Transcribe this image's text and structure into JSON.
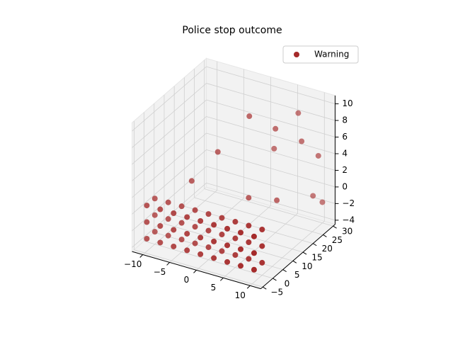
{
  "chart_data": {
    "type": "scatter3d",
    "title": "Police stop outcome",
    "series": [
      {
        "name": "Warning",
        "color": "#a52a2a",
        "x": [
          -10,
          -10,
          -10,
          -10,
          -10,
          -10,
          -7.5,
          -7.5,
          -7.5,
          -7.5,
          -7.5,
          -7.5,
          -5,
          -5,
          -5,
          -5,
          -5,
          -5,
          -2.5,
          -2.5,
          -2.5,
          -2.5,
          -2.5,
          -2.5,
          0,
          0,
          0,
          0,
          0,
          0,
          2.5,
          2.5,
          2.5,
          2.5,
          2.5,
          2.5,
          5,
          5,
          5,
          5,
          5,
          5,
          7.5,
          7.5,
          7.5,
          7.5,
          7.5,
          7.5,
          10,
          10,
          10,
          10,
          10,
          10,
          5,
          8,
          10,
          2,
          -2,
          -5,
          6,
          9,
          10,
          4,
          7,
          3
        ],
        "y": [
          -4,
          -4,
          -4,
          0,
          0,
          0,
          -4,
          -4,
          -4,
          0,
          0,
          0,
          -4,
          -4,
          -4,
          0,
          0,
          0,
          -4,
          -4,
          -4,
          0,
          0,
          0,
          -4,
          -4,
          -4,
          0,
          0,
          0,
          -4,
          -4,
          -4,
          0,
          0,
          0,
          -4,
          -4,
          -4,
          0,
          0,
          0,
          -4,
          -4,
          -4,
          0,
          0,
          0,
          -4,
          -4,
          -4,
          0,
          0,
          0,
          20,
          25,
          28,
          15,
          10,
          5,
          18,
          28,
          30,
          22,
          26,
          12
        ],
        "z": [
          -3,
          -1,
          1,
          -3,
          -1,
          1,
          -3,
          -1,
          1,
          -3,
          -1,
          1,
          -3,
          -1,
          1,
          -3,
          -1,
          1,
          -3,
          -1,
          1,
          -3,
          -1,
          1,
          -3,
          -1,
          1,
          -3,
          -1,
          1,
          -3,
          -1,
          1,
          -3,
          -1,
          1,
          -3,
          -1,
          1,
          -3,
          -1,
          1,
          -3,
          -1,
          1,
          -3,
          -1,
          1,
          -3,
          -1,
          1,
          -3,
          -1,
          1,
          8,
          6,
          4,
          10,
          6,
          3,
          0,
          -1,
          -2,
          5,
          9,
          1
        ]
      }
    ],
    "xlim": [
      -12,
      12
    ],
    "ylim": [
      -6,
      31
    ],
    "zlim": [
      -4.5,
      11
    ],
    "xticks": [
      {
        "value": -10,
        "label": "−10"
      },
      {
        "value": -5,
        "label": "−5"
      },
      0,
      5,
      10
    ],
    "yticks": [
      {
        "value": -5,
        "label": "−5"
      },
      0,
      5,
      10,
      15,
      20,
      25,
      30
    ],
    "zticks": [
      {
        "value": -4,
        "label": "−4"
      },
      {
        "value": -2,
        "label": "−2"
      },
      0,
      2,
      4,
      6,
      8,
      10
    ],
    "grid": true,
    "legend": "upper right"
  }
}
